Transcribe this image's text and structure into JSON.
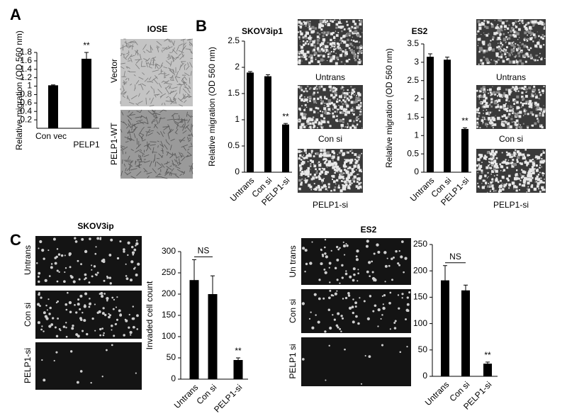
{
  "figure": {
    "panel_labels": [
      "A",
      "B",
      "C"
    ],
    "headings": [
      "IOSE",
      "SKOV3ip1",
      "ES2",
      "SKOV3ip",
      "ES2"
    ],
    "image_labels": [
      "Vector",
      "PELP1-WT",
      "Untrans",
      "Con si",
      "PELP1-si",
      "Untrans",
      "Con si",
      "PELP1-si",
      "Untrans",
      "Con si",
      "PELP1-si",
      "Un trans",
      "Con si",
      "PELP1  si"
    ]
  },
  "chart_data": [
    {
      "type": "bar",
      "ylabel": "Relative migration  (OD 560 nm)",
      "categories": [
        "Con  vec",
        "PELP1"
      ],
      "values": [
        1.02,
        1.65
      ],
      "errors": [
        0.01,
        0.15
      ],
      "color": "#000000",
      "ylim": [
        0,
        1.8
      ],
      "yticks": [
        0.2,
        0.4,
        0.6,
        0.8,
        1,
        1.2,
        1.4,
        1.6,
        1.8
      ],
      "annotations": [
        "**"
      ]
    },
    {
      "type": "bar",
      "ylabel": "Relative migration  (OD 560 nm)",
      "categories": [
        "Untrans",
        "Con si",
        "PELP1-si"
      ],
      "values": [
        1.9,
        1.83,
        0.91
      ],
      "errors": [
        0.02,
        0.03,
        0.02
      ],
      "color": "#000000",
      "ylim": [
        0,
        2.5
      ],
      "yticks": [
        0,
        0.5,
        1,
        1.5,
        2,
        2.5
      ],
      "annotations": [
        "**"
      ]
    },
    {
      "type": "bar",
      "ylabel": "Relative migration  (OD 560 nm)",
      "categories": [
        "Untrans",
        "Con si",
        "PELP1-si"
      ],
      "values": [
        3.15,
        3.07,
        1.18
      ],
      "errors": [
        0.08,
        0.07,
        0.03
      ],
      "color": "#000000",
      "ylim": [
        0,
        3.5
      ],
      "yticks": [
        0,
        0.5,
        1,
        1.5,
        2,
        2.5,
        3,
        3.5
      ],
      "annotations": [
        "**"
      ]
    },
    {
      "type": "bar",
      "ylabel": "Invaded cell count",
      "categories": [
        "Untrans",
        "Con si",
        "PELP1-si"
      ],
      "values": [
        233,
        200,
        45
      ],
      "errors": [
        48,
        43,
        5
      ],
      "color": "#000000",
      "ylim": [
        0,
        300
      ],
      "yticks": [
        0,
        50,
        100,
        150,
        200,
        250,
        300
      ],
      "annotations": [
        "NS",
        "**"
      ]
    },
    {
      "type": "bar",
      "categories": [
        "Untrans",
        "Con si",
        "PELP1-si"
      ],
      "values": [
        182,
        163,
        24
      ],
      "errors": [
        28,
        10,
        3
      ],
      "color": "#000000",
      "ylim": [
        0,
        250
      ],
      "yticks": [
        0,
        50,
        100,
        150,
        200,
        250
      ],
      "annotations": [
        "NS",
        "**"
      ]
    }
  ]
}
